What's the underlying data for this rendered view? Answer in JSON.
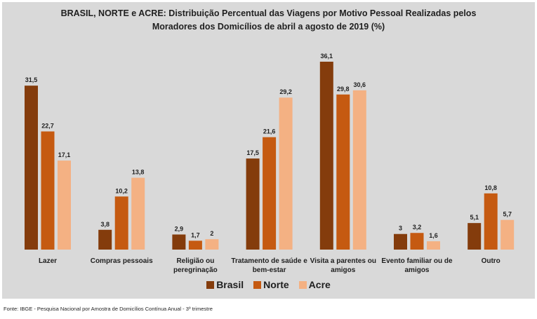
{
  "chart_data": {
    "type": "bar",
    "title": "BRASIL, NORTE e ACRE: Distribuição Percentual das Viagens por Motivo Pessoal Realizadas pelos Moradores dos Domicílios de abril a agosto de 2019 (%)",
    "title_lines": [
      "BRASIL, NORTE e ACRE: Distribuição Percentual das Viagens por Motivo Pessoal Realizadas pelos",
      "Moradores dos Domicílios de abril a agosto de 2019 (%)"
    ],
    "xlabel": "",
    "ylabel": "",
    "ylim": [
      0,
      36.1
    ],
    "grid": false,
    "legend_position": "bottom",
    "categories": [
      [
        "Lazer"
      ],
      [
        "Compras pessoais"
      ],
      [
        "Religião ou",
        "peregrinação"
      ],
      [
        "Tratamento de saúde e",
        "bem-estar"
      ],
      [
        "Visita a parentes ou",
        "amigos"
      ],
      [
        "Evento familiar ou de",
        "amigos"
      ],
      [
        "Outro"
      ]
    ],
    "series": [
      {
        "name": "Brasil",
        "color": "#843c0c",
        "values": [
          31.5,
          3.8,
          2.9,
          17.5,
          36.1,
          3,
          5.1
        ],
        "labels": [
          "31,5",
          "3,8",
          "2,9",
          "17,5",
          "36,1",
          "3",
          "5,1"
        ]
      },
      {
        "name": "Norte",
        "color": "#c55a11",
        "values": [
          22.7,
          10.2,
          1.7,
          21.6,
          29.8,
          3.2,
          10.8
        ],
        "labels": [
          "22,7",
          "10,2",
          "1,7",
          "21,6",
          "29,8",
          "3,2",
          "10,8"
        ]
      },
      {
        "name": "Acre",
        "color": "#f4b183",
        "values": [
          17.1,
          13.8,
          2,
          29.2,
          30.6,
          1.6,
          5.7
        ],
        "labels": [
          "17,1",
          "13,8",
          "2",
          "29,2",
          "30,6",
          "1,6",
          "5,7"
        ]
      }
    ]
  },
  "footer": {
    "source": "Fonte: IBGE - Pesquisa Nacional por Amostra de Domicílios Contínua Anual - 3º trimestre"
  }
}
